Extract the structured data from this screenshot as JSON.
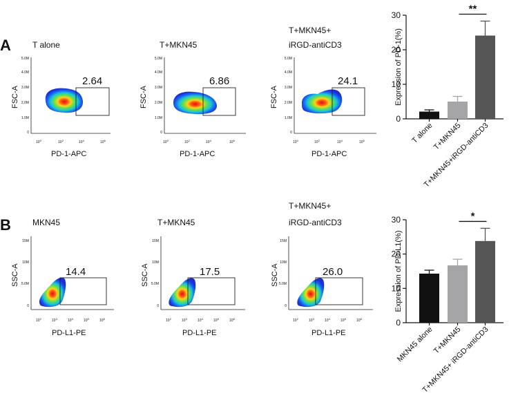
{
  "panels": [
    {
      "letter": "A",
      "ylabel": "FSC-A",
      "xlabel": "PD-1-APC",
      "yticks": [
        "5.0M",
        "4.0M",
        "3.0M",
        "2.0M",
        "1.0M",
        "0"
      ],
      "xticks": [
        "10",
        "10",
        "10",
        "10"
      ],
      "xtick_exp": [
        "0",
        "2",
        "4",
        "6"
      ],
      "plots": [
        {
          "title": [
            "T alone"
          ],
          "gate": "2.64"
        },
        {
          "title": [
            "T+MKN45"
          ],
          "gate": "6.86"
        },
        {
          "title": [
            "T+MKN45+",
            "iRGD-antiCD3"
          ],
          "gate": "24.1"
        }
      ]
    },
    {
      "letter": "B",
      "ylabel": "SSC-A",
      "xlabel": "PD-L1-PE",
      "yticks": [
        "15M",
        "10M",
        "5.0M",
        "0"
      ],
      "xticks": [
        "10",
        "10",
        "10",
        "10",
        "10"
      ],
      "xtick_exp": [
        "2",
        "3",
        "4",
        "5",
        "6"
      ],
      "plots": [
        {
          "title": [
            "MKN45"
          ],
          "gate": "14.4"
        },
        {
          "title": [
            "T+MKN45"
          ],
          "gate": "17.5"
        },
        {
          "title": [
            "T+MKN45+",
            "iRGD-antiCD3"
          ],
          "gate": "26.0"
        }
      ]
    }
  ],
  "chart_data": [
    {
      "type": "bar",
      "panel": "A",
      "categories": [
        "T alone",
        "T+MKN45",
        "T+MKN45+iRGD-antiCD3"
      ],
      "values": [
        2.1,
        5.0,
        24.1
      ],
      "errors": [
        0.5,
        1.5,
        4.2
      ],
      "colors": [
        "#111111",
        "#a5a5a8",
        "#555555"
      ],
      "ylabel": "Expression of PD-1(%)",
      "ylim": [
        0,
        30
      ],
      "yticks": [
        "0",
        "10",
        "20",
        "30"
      ],
      "yticks_values": [
        0,
        10,
        20,
        30
      ],
      "significance": {
        "label": "**",
        "from": 1,
        "to": 2
      }
    },
    {
      "type": "bar",
      "panel": "B",
      "categories": [
        "MKN45 alone",
        "T+MKN45",
        "T+MKN45+ iRGD-antiCD3"
      ],
      "values": [
        14.3,
        16.7,
        23.8
      ],
      "errors": [
        1.0,
        1.8,
        3.7
      ],
      "colors": [
        "#111111",
        "#a5a5a8",
        "#555555"
      ],
      "ylabel": "Expression of PD-L1(%)",
      "ylim": [
        0,
        30
      ],
      "yticks": [
        "0",
        "10",
        "20",
        "30"
      ],
      "yticks_values": [
        0,
        10,
        20,
        30
      ],
      "significance": {
        "label": "*",
        "from": 1,
        "to": 2
      }
    }
  ]
}
